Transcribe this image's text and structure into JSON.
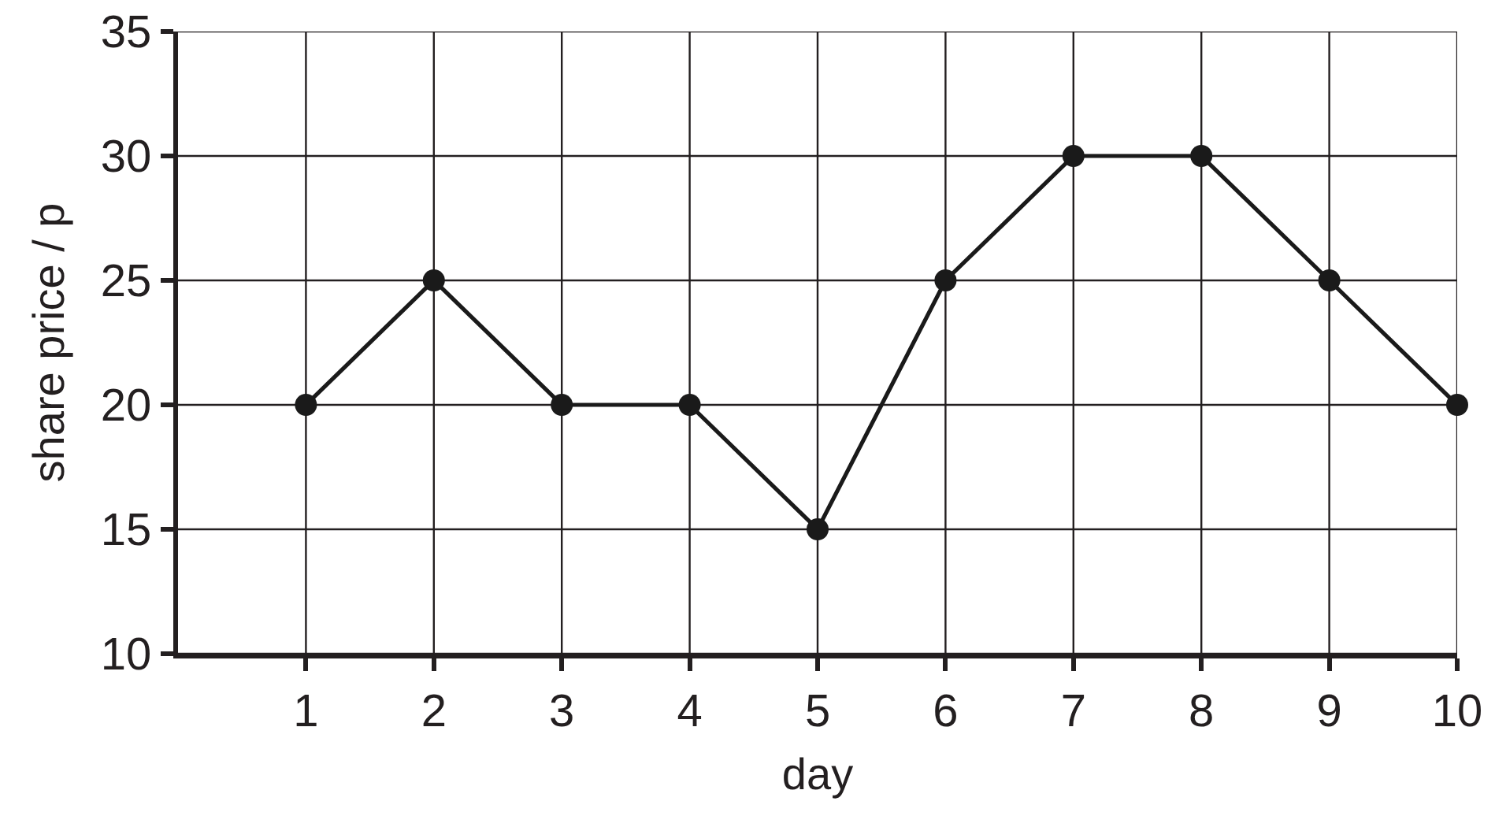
{
  "chart_data": {
    "type": "line",
    "xlabel": "day",
    "ylabel": "share price / p",
    "x": [
      1,
      2,
      3,
      4,
      5,
      6,
      7,
      8,
      9,
      10
    ],
    "series": [
      {
        "color": "#1a1a1a",
        "values": [
          20,
          25,
          20,
          20,
          15,
          25,
          30,
          30,
          25,
          20
        ]
      }
    ],
    "xlim": [
      0,
      10
    ],
    "xticks": [
      1,
      2,
      3,
      4,
      5,
      6,
      7,
      8,
      9,
      10
    ],
    "ylim": [
      10,
      35
    ],
    "yticks": [
      10,
      15,
      20,
      25,
      30,
      35
    ],
    "grid": true,
    "marker": "circle",
    "line_style": "solid"
  }
}
